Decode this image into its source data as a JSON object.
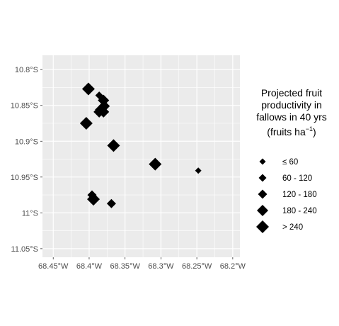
{
  "chart_data": {
    "type": "scatter",
    "title": "",
    "xlabel": "",
    "ylabel": "",
    "xlim": [
      -68.465,
      -68.19
    ],
    "ylim": [
      -11.062,
      -10.78
    ],
    "x_ticks": [
      {
        "value": -68.45,
        "label": "68.45°W"
      },
      {
        "value": -68.4,
        "label": "68.4°W"
      },
      {
        "value": -68.35,
        "label": "68.35°W"
      },
      {
        "value": -68.3,
        "label": "68.3°W"
      },
      {
        "value": -68.25,
        "label": "68.25°W"
      },
      {
        "value": -68.2,
        "label": "68.2°W"
      }
    ],
    "y_ticks": [
      {
        "value": -10.8,
        "label": "10.8°S"
      },
      {
        "value": -10.85,
        "label": "10.85°S"
      },
      {
        "value": -10.9,
        "label": "10.9°S"
      },
      {
        "value": -10.95,
        "label": "10.95°S"
      },
      {
        "value": -11.0,
        "label": "11°S"
      },
      {
        "value": -11.05,
        "label": "11.05°S"
      }
    ],
    "grid": true,
    "marker": "diamond",
    "points": [
      {
        "x": -68.401,
        "y": -10.827,
        "cls": 5
      },
      {
        "x": -68.386,
        "y": -10.836,
        "cls": 2
      },
      {
        "x": -68.38,
        "y": -10.843,
        "cls": 4
      },
      {
        "x": -68.379,
        "y": -10.851,
        "cls": 4
      },
      {
        "x": -68.384,
        "y": -10.856,
        "cls": 4
      },
      {
        "x": -68.38,
        "y": -10.859,
        "cls": 4
      },
      {
        "x": -68.386,
        "y": -10.859,
        "cls": 4
      },
      {
        "x": -68.404,
        "y": -10.875,
        "cls": 5
      },
      {
        "x": -68.366,
        "y": -10.906,
        "cls": 5
      },
      {
        "x": -68.308,
        "y": -10.932,
        "cls": 5
      },
      {
        "x": -68.248,
        "y": -10.941,
        "cls": 1
      },
      {
        "x": -68.396,
        "y": -10.975,
        "cls": 3
      },
      {
        "x": -68.394,
        "y": -10.981,
        "cls": 5
      },
      {
        "x": -68.369,
        "y": -10.987,
        "cls": 3
      }
    ],
    "legend": {
      "position": "right",
      "title_lines": [
        "Projected fruit",
        "productivity in",
        "fallows in 40 yrs"
      ],
      "title_unit_base": "(fruits ha",
      "title_unit_sup": "−1",
      "title_unit_end": ")",
      "entries": [
        {
          "cls": 1,
          "label": "≤ 60"
        },
        {
          "cls": 2,
          "label": "60 - 120"
        },
        {
          "cls": 3,
          "label": "120 - 180"
        },
        {
          "cls": 4,
          "label": "180 - 240"
        },
        {
          "cls": 5,
          "label": "> 240"
        }
      ]
    },
    "colors": {
      "panel": "#ebebeb",
      "grid_major": "#ffffff",
      "points": "#000000",
      "tick_text": "#4d4d4d"
    }
  }
}
